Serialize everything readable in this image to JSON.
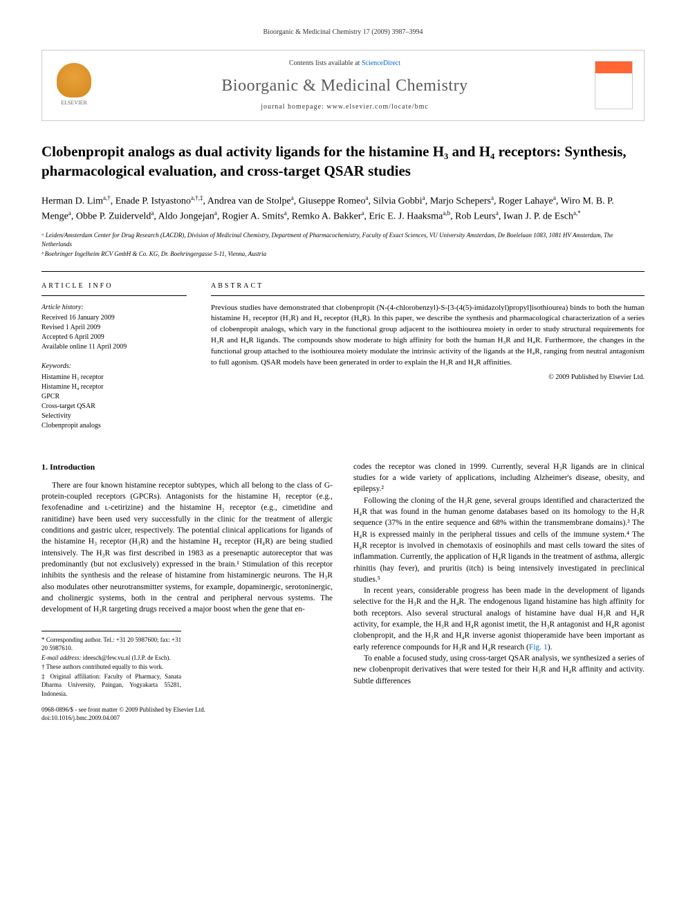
{
  "header": {
    "citation": "Bioorganic & Medicinal Chemistry 17 (2009) 3987–3994"
  },
  "journalbox": {
    "contents_prefix": "Contents lists available at ",
    "contents_link": "ScienceDirect",
    "journal_name": "Bioorganic & Medicinal Chemistry",
    "homepage_label": "journal homepage: www.elsevier.com/locate/bmc",
    "publisher": "ELSEVIER"
  },
  "title": "Clobenpropit analogs as dual activity ligands for the histamine H₃ and H₄ receptors: Synthesis, pharmacological evaluation, and cross-target QSAR studies",
  "authors_html": "Herman D. Lim<sup>a,†</sup>, Enade P. Istyastono<sup>a,†,‡</sup>, Andrea van de Stolpe<sup>a</sup>, Giuseppe Romeo<sup>a</sup>, Silvia Gobbi<sup>a</sup>, Marjo Schepers<sup>a</sup>, Roger Lahaye<sup>a</sup>, Wiro M. B. P. Menge<sup>a</sup>, Obbe P. Zuiderveld<sup>a</sup>, Aldo Jongejan<sup>a</sup>, Rogier A. Smits<sup>a</sup>, Remko A. Bakker<sup>a</sup>, Eric E. J. Haaksma<sup>a,b</sup>, Rob Leurs<sup>a</sup>, Iwan J. P. de Esch<sup>a,*</sup>",
  "affiliations": [
    "ᵃ Leiden/Amsterdam Center for Drug Research (LACDR), Division of Medicinal Chemistry, Department of Pharmacochemistry, Faculty of Exact Sciences, VU University Amsterdam, De Boelelaan 1083, 1081 HV Amsterdam, The Netherlands",
    "ᵇ Boehringer Ingelheim RCV GmbH & Co. KG, Dr. Boehringergasse 5-11, Vienna, Austria"
  ],
  "article_info": {
    "heading": "ARTICLE INFO",
    "history_label": "Article history:",
    "history": [
      "Received 16 January 2009",
      "Revised 1 April 2009",
      "Accepted 6 April 2009",
      "Available online 11 April 2009"
    ],
    "keywords_label": "Keywords:",
    "keywords": [
      "Histamine H₃ receptor",
      "Histamine H₄ receptor",
      "GPCR",
      "Cross-target QSAR",
      "Selectivity",
      "Clobenpropit analogs"
    ]
  },
  "abstract": {
    "heading": "ABSTRACT",
    "text": "Previous studies have demonstrated that clobenpropit (N-(4-chlorobenzyl)-S-[3-(4(5)-imidazolyl)propyl]isothiourea) binds to both the human histamine H₃ receptor (H₃R) and H₄ receptor (H₄R). In this paper, we describe the synthesis and pharmacological characterization of a series of clobenpropit analogs, which vary in the functional group adjacent to the isothiourea moiety in order to study structural requirements for H₃R and H₄R ligands. The compounds show moderate to high affinity for both the human H₃R and H₄R. Furthermore, the changes in the functional group attached to the isothiourea moiety modulate the intrinsic activity of the ligands at the H₄R, ranging from neutral antagonism to full agonism. QSAR models have been generated in order to explain the H₃R and H₄R affinities.",
    "copyright": "© 2009 Published by Elsevier Ltd."
  },
  "body": {
    "section_heading": "1. Introduction",
    "col1": [
      "There are four known histamine receptor subtypes, which all belong to the class of G-protein-coupled receptors (GPCRs). Antagonists for the histamine H₁ receptor (e.g., fexofenadine and ʟ-cetirizine) and the histamine H₂ receptor (e.g., cimetidine and ranitidine) have been used very successfully in the clinic for the treatment of allergic conditions and gastric ulcer, respectively. The potential clinical applications for ligands of the histamine H₃ receptor (H₃R) and the histamine H₄ receptor (H₄R) are being studied intensively. The H₃R was first described in 1983 as a presenaptic autoreceptor that was predominantly (but not exclusively) expressed in the brain.¹ Stimulation of this receptor inhibits the synthesis and the release of histamine from histaminergic neurons. The H₃R also modulates other neurotransmitter systems, for example, dopaminergic, serotoninergic, and cholinergic systems, both in the central and peripheral nervous systems. The development of H₃R targeting drugs received a major boost when the gene that en-"
    ],
    "col2": [
      "codes the receptor was cloned in 1999. Currently, several H₃R ligands are in clinical studies for a wide variety of applications, including Alzheimer's disease, obesity, and epilepsy.²",
      "Following the cloning of the H₃R gene, several groups identified and characterized the H₄R that was found in the human genome databases based on its homology to the H₃R sequence (37% in the entire sequence and 68% within the transmembrane domains).³ The H₄R is expressed mainly in the peripheral tissues and cells of the immune system.⁴ The H₄R receptor is involved in chemotaxis of eosinophils and mast cells toward the sites of inflammation. Currently, the application of H₄R ligands in the treatment of asthma, allergic rhinitis (hay fever), and pruritis (itch) is being intensively investigated in preclinical studies.⁵",
      "In recent years, considerable progress has been made in the development of ligands selective for the H₃R and the H₄R. The endogenous ligand histamine has high affinity for both receptors. Also several structural analogs of histamine have dual H₃R and H₄R activity, for example, the H₃R and H₄R agonist imetit, the H₃R antagonist and H₄R agonist clobenpropit, and the H₃R and H₄R inverse agonist thioperamide have been important as early reference compounds for H₃R and H₄R research (Fig. 1).",
      "To enable a focused study, using cross-target QSAR analysis, we synthesized a series of new clobenpropit derivatives that were tested for their H₃R and H₄R affinity and activity. Subtle differences"
    ]
  },
  "footnotes": {
    "corresponding": "* Corresponding author. Tel.: +31 20 5987600; fax: +31 20 5987610.",
    "email_label": "E-mail address: ",
    "email": "ideesch@few.vu.nl",
    "email_suffix": " (I.J.P. de Esch).",
    "dagger": "† These authors contributed equally to this work.",
    "ddagger": "‡ Original affiliation: Faculty of Pharmacy, Sanata Dharma University, Paingan, Yogyakarta 55281, Indonesia."
  },
  "doi": {
    "line1": "0968-0896/$ - see front matter © 2009 Published by Elsevier Ltd.",
    "line2": "doi:10.1016/j.bmc.2009.04.007"
  },
  "fig_ref": "Fig. 1"
}
